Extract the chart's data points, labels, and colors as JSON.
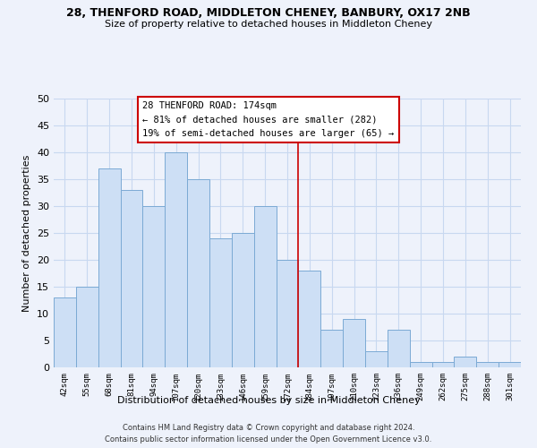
{
  "title1": "28, THENFORD ROAD, MIDDLETON CHENEY, BANBURY, OX17 2NB",
  "title2": "Size of property relative to detached houses in Middleton Cheney",
  "xlabel": "Distribution of detached houses by size in Middleton Cheney",
  "ylabel": "Number of detached properties",
  "bin_labels": [
    "42sqm",
    "55sqm",
    "68sqm",
    "81sqm",
    "94sqm",
    "107sqm",
    "120sqm",
    "133sqm",
    "146sqm",
    "159sqm",
    "172sqm",
    "184sqm",
    "197sqm",
    "210sqm",
    "223sqm",
    "236sqm",
    "249sqm",
    "262sqm",
    "275sqm",
    "288sqm",
    "301sqm"
  ],
  "bar_values": [
    13,
    15,
    37,
    33,
    30,
    40,
    35,
    24,
    25,
    30,
    20,
    18,
    7,
    9,
    3,
    7,
    1,
    1,
    2,
    1,
    1
  ],
  "bar_color": "#cddff5",
  "bar_edge_color": "#7baad4",
  "vline_x": 10.5,
  "vline_color": "#cc0000",
  "ylim": [
    0,
    50
  ],
  "yticks": [
    0,
    5,
    10,
    15,
    20,
    25,
    30,
    35,
    40,
    45,
    50
  ],
  "annotation_title": "28 THENFORD ROAD: 174sqm",
  "annotation_line1": "← 81% of detached houses are smaller (282)",
  "annotation_line2": "19% of semi-detached houses are larger (65) →",
  "annotation_box_color": "white",
  "annotation_box_edge": "#cc0000",
  "footer1": "Contains HM Land Registry data © Crown copyright and database right 2024.",
  "footer2": "Contains public sector information licensed under the Open Government Licence v3.0.",
  "background_color": "#eef2fb",
  "grid_color": "#c8d8f0"
}
